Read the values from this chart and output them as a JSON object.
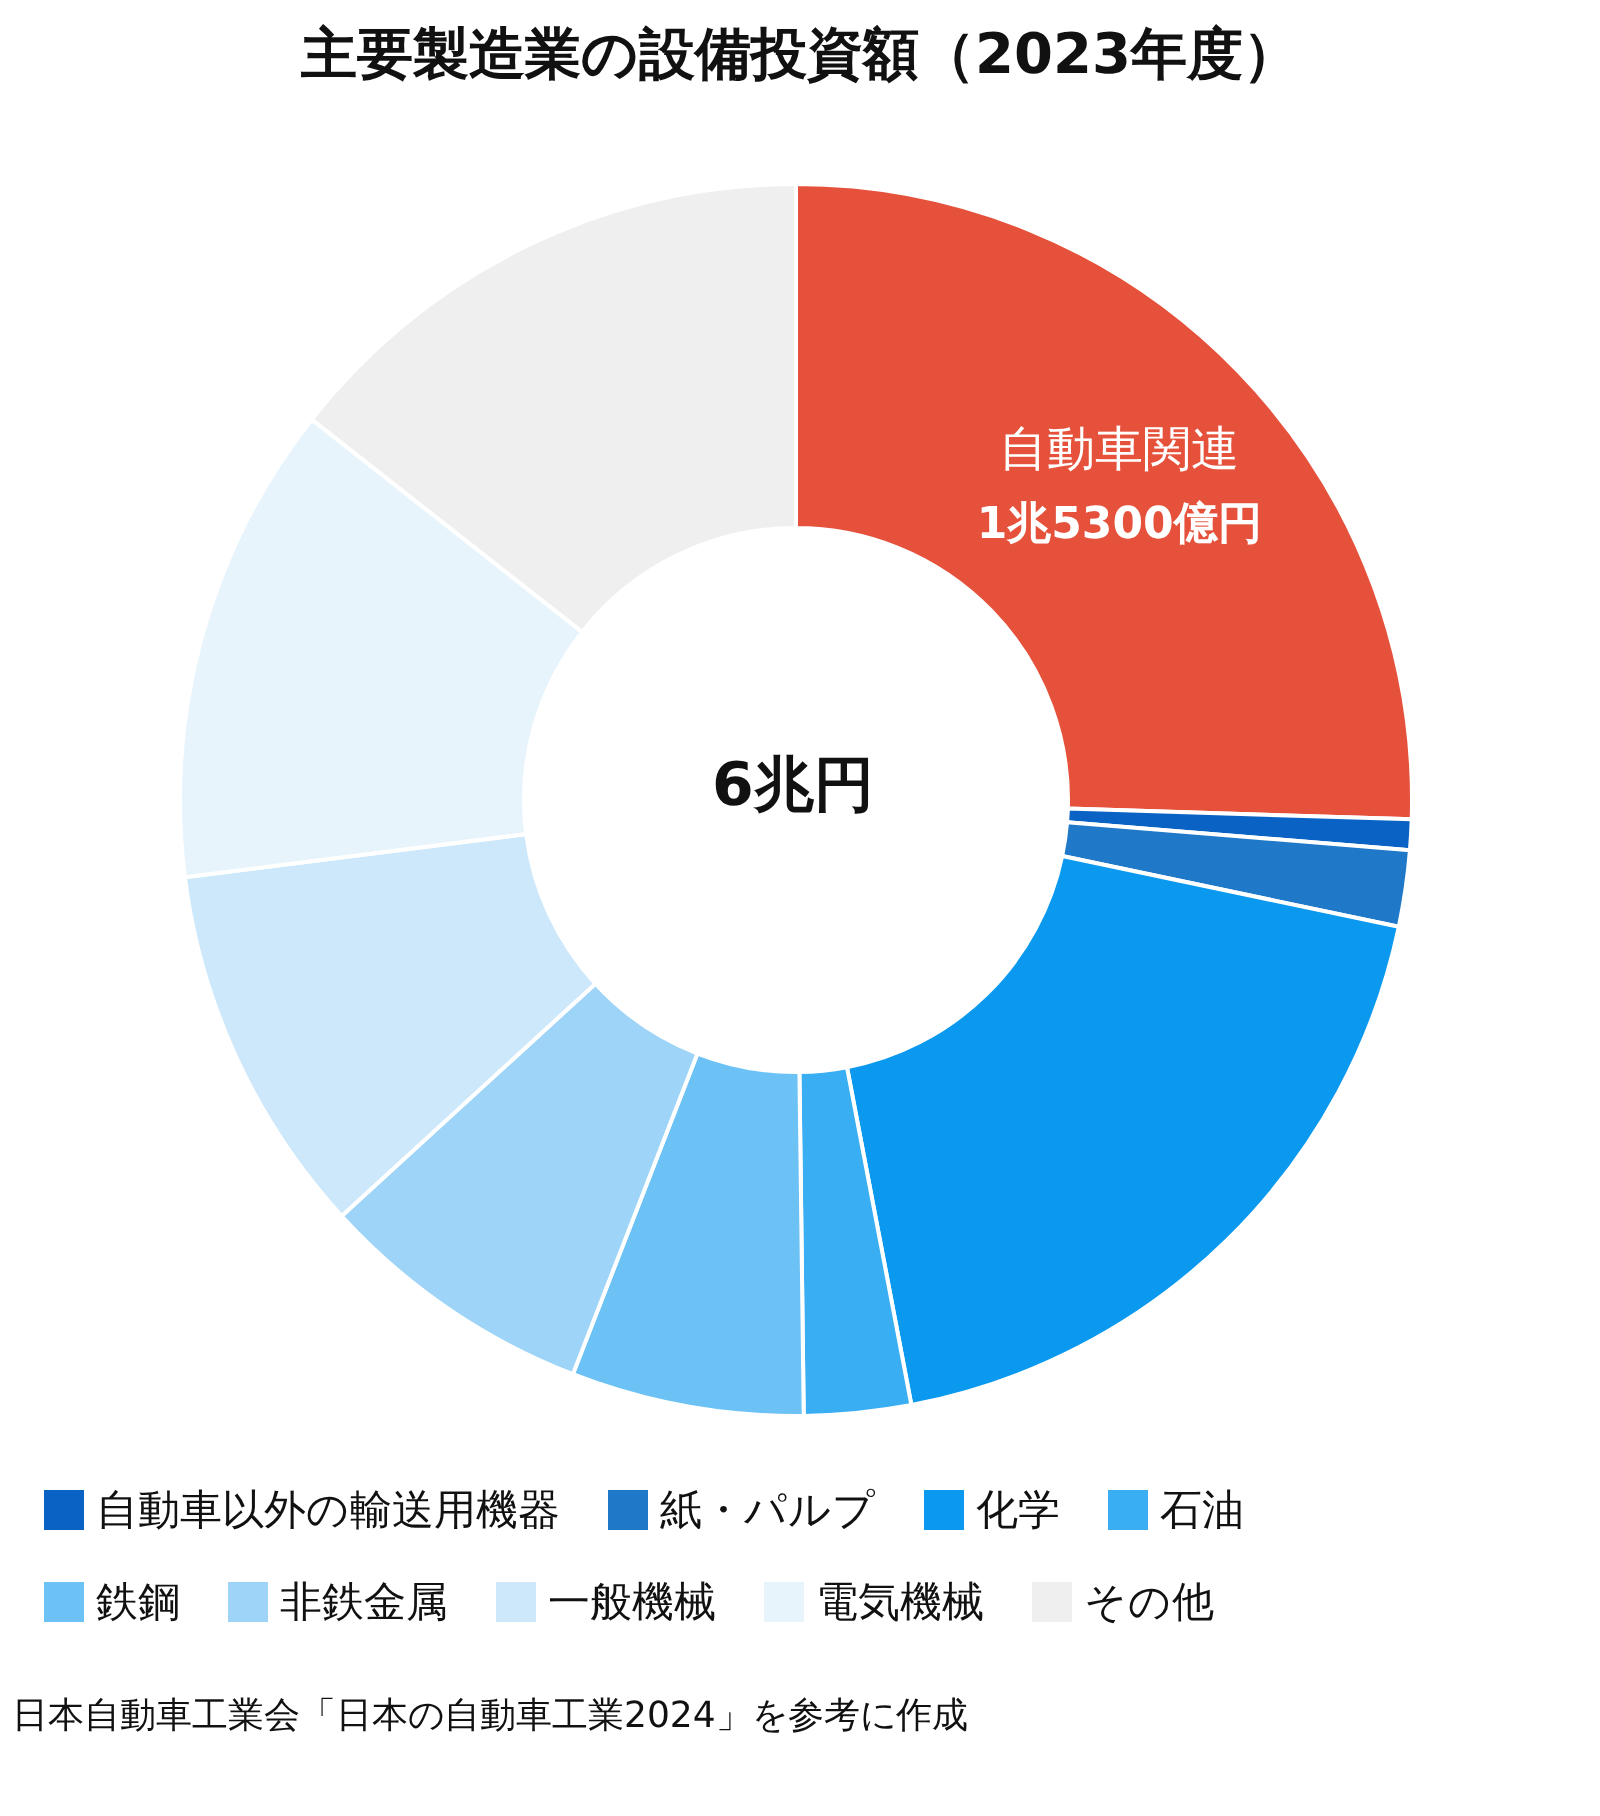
{
  "chart_data": {
    "type": "donut",
    "title": "主要製造業の設備投資額（2023年度）",
    "categories": [
      "自動車関連",
      "自動車以外の輸送用機器",
      "紙・パルプ",
      "化学",
      "石油",
      "鉄鋼",
      "非鉄金属",
      "一般機械",
      "電気機械",
      "その他"
    ],
    "values": [
      25.5,
      0.8,
      2,
      18.7,
      2.8,
      6.1,
      7.3,
      9.8,
      12.6,
      14.4
    ],
    "colors": [
      "#e5513a",
      "#0a63c4",
      "#1f78c8",
      "#0a99ef",
      "#3aaef2",
      "#6cc1f5",
      "#9dd4f7",
      "#cde8fa",
      "#e8f4fc",
      "#efefef"
    ],
    "legend": "bottom",
    "annotations": [
      "6兆円",
      "日本自動車工業会「日本の自動車工業2024」を参考に作成",
      {
        "text": "1兆5300億円",
        "x": "自動車関連"
      }
    ]
  }
}
